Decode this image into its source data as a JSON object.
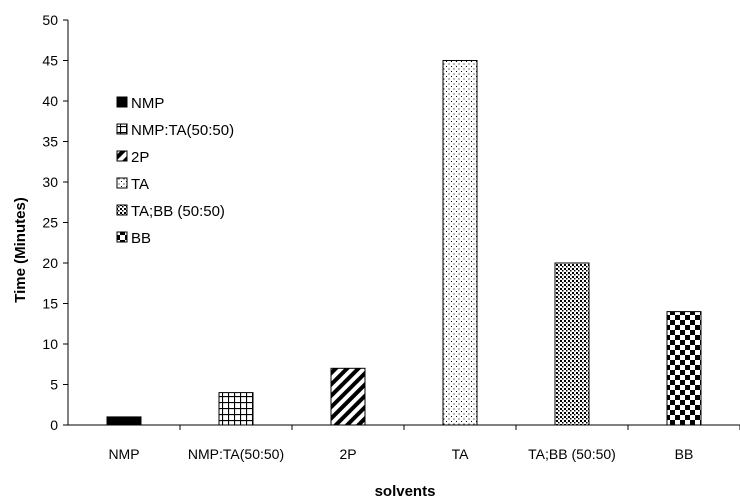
{
  "chart_data": {
    "type": "bar",
    "title": "",
    "xlabel": "solvents",
    "ylabel": "Time (Minutes)",
    "ylim": [
      0,
      50
    ],
    "yticks": [
      0,
      5,
      10,
      15,
      20,
      25,
      30,
      35,
      40,
      45,
      50
    ],
    "categories": [
      "NMP",
      "NMP:TA(50:50)",
      "2P",
      "TA",
      "TA;BB (50:50)",
      "BB"
    ],
    "values": [
      1,
      4,
      7,
      45,
      20,
      14
    ],
    "legend": [
      "NMP",
      "NMP:TA(50:50)",
      "2P",
      "TA",
      "TA;BB (50:50)",
      "BB"
    ],
    "legend_position": "left, inside plot area",
    "patterns": [
      "solid-black",
      "grid",
      "diagonal-stripes",
      "sparse-dots",
      "dense-dots",
      "checkerboard"
    ],
    "grid": false
  }
}
